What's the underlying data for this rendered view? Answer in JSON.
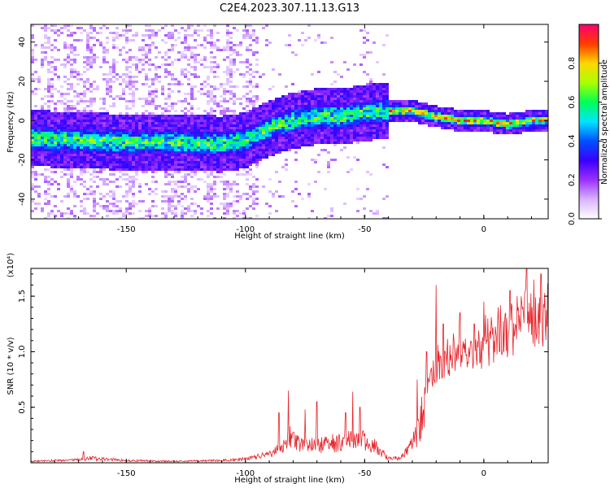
{
  "title": "C2E4.2023.307.11.13.G13",
  "chart_data": [
    {
      "type": "heatmap",
      "xlabel": "Height of straight line (km)",
      "ylabel": "Frequency (Hz)",
      "xlim": [
        -190,
        27
      ],
      "ylim": [
        -50,
        49
      ],
      "xticks": [
        -150,
        -100,
        -50,
        0
      ],
      "yticks": [
        -40,
        -20,
        0,
        20,
        40
      ],
      "colorbar": {
        "label": "Normalized spectral amplitude",
        "range": [
          0,
          1
        ],
        "ticks": [
          "0.0",
          "0.2",
          "0.4",
          "0.6",
          "0.8"
        ],
        "colormap": [
          "#ffffff",
          "#d9b3ff",
          "#9b30ff",
          "#3a00ff",
          "#0050ff",
          "#00e5ff",
          "#00ff55",
          "#aaff00",
          "#ffd700",
          "#ff3b00",
          "#ff0070"
        ]
      },
      "ridge": {
        "x": [
          -190,
          -170,
          -150,
          -130,
          -110,
          -100,
          -90,
          -80,
          -70,
          -60,
          -50,
          -40,
          -30,
          -20,
          -10,
          0,
          10,
          20,
          27
        ],
        "y": [
          -9,
          -10,
          -11,
          -11,
          -12,
          -10,
          -4,
          0,
          2,
          2,
          4,
          5,
          5,
          2,
          0,
          0,
          -2,
          0,
          0
        ]
      }
    },
    {
      "type": "line",
      "xlabel": "Height of straight line (km)",
      "ylabel": "SNR (10 * v/v)",
      "y_multiplier": "(x10⁴)",
      "xlim": [
        -190,
        27
      ],
      "ylim": [
        0,
        1.75
      ],
      "xticks": [
        -150,
        -100,
        -50,
        0
      ],
      "yticks": [
        "0.5",
        "1.0",
        "1.5"
      ],
      "series": [
        {
          "color": "#e8232a",
          "envelope_x": [
            -190,
            -170,
            -165,
            -150,
            -130,
            -110,
            -100,
            -95,
            -88,
            -85,
            -82,
            -78,
            -70,
            -65,
            -60,
            -55,
            -50,
            -45,
            -40,
            -35,
            -30,
            -28,
            -25,
            -22,
            -20,
            -18,
            -15,
            -10,
            -5,
            0,
            5,
            10,
            15,
            18,
            22,
            27
          ],
          "envelope_y": [
            0.02,
            0.04,
            0.06,
            0.03,
            0.02,
            0.03,
            0.05,
            0.08,
            0.15,
            0.2,
            0.35,
            0.25,
            0.22,
            0.25,
            0.28,
            0.32,
            0.3,
            0.2,
            0.06,
            0.06,
            0.25,
            0.4,
            0.75,
            0.9,
            1.0,
            1.05,
            1.1,
            1.15,
            1.1,
            1.2,
            1.3,
            1.35,
            1.4,
            1.55,
            1.45,
            1.5
          ],
          "spike_x": [
            -168,
            -86,
            -82,
            -75,
            -70,
            -58,
            -55,
            -52,
            -28,
            -24,
            -20,
            -17,
            -10,
            -4,
            0,
            6,
            11,
            14,
            18,
            21,
            24,
            27
          ],
          "spike_y": [
            0.1,
            0.45,
            0.65,
            0.48,
            0.55,
            0.45,
            0.64,
            0.5,
            0.75,
            1.0,
            1.6,
            1.25,
            1.35,
            1.25,
            1.45,
            1.4,
            1.55,
            1.5,
            1.75,
            1.65,
            1.7,
            1.62
          ]
        }
      ]
    }
  ]
}
